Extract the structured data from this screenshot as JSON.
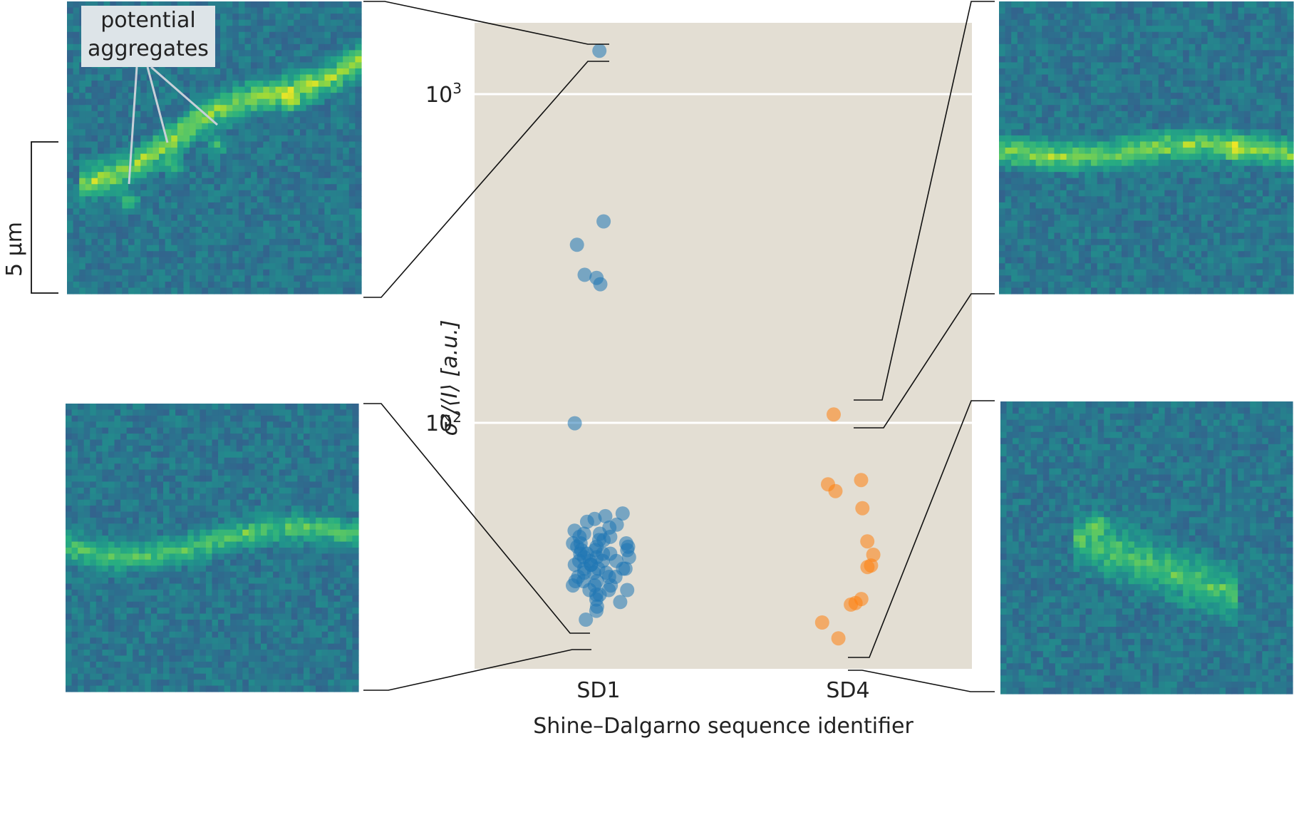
{
  "chart_data": {
    "type": "scatter",
    "y_scale": "log",
    "ylim": [
      20,
      1600
    ],
    "categories": [
      "SD1",
      "SD4"
    ],
    "xlabel": "Shine–Dalgarno sequence identifier",
    "ylabel": "σ²/⟨I⟩  [a.u.]",
    "y_ticks": [
      {
        "value": 100,
        "label_base": "10",
        "label_exp": "2"
      },
      {
        "value": 1000,
        "label_base": "10",
        "label_exp": "3"
      }
    ],
    "grid": true,
    "series": [
      {
        "category": "SD1",
        "color": "#1f77b4",
        "values": [
          1355,
          410,
          348,
          282,
          276,
          264,
          99.7,
          53,
          52,
          51,
          50,
          49,
          48,
          47,
          46,
          46,
          45,
          45,
          44,
          44,
          43,
          43,
          43,
          42,
          42,
          42,
          41,
          41,
          41,
          40,
          40,
          40,
          40,
          39,
          39,
          39,
          38,
          38,
          38,
          38,
          37,
          37,
          37,
          36,
          36,
          36,
          36,
          35,
          35,
          35,
          34,
          34,
          34,
          33,
          33,
          33,
          32,
          32,
          32,
          31,
          31,
          31,
          30,
          30,
          29,
          28.5,
          27.6,
          26.8,
          25.2
        ]
      },
      {
        "category": "SD4",
        "color": "#ff7f0e",
        "values": [
          106,
          67,
          65,
          62,
          55,
          43.6,
          39.7,
          36.8,
          36.4,
          29.1,
          28.3,
          28,
          24.7,
          22.1
        ]
      }
    ]
  },
  "annotations": {
    "potential_aggregates_line1": "potential",
    "potential_aggregates_line2": "aggregates",
    "scale_bar": "5 µm"
  },
  "colors": {
    "plot_background": "#e3ded3",
    "grid": "#ffffff",
    "sd1_marker": "#1f77b4",
    "sd4_marker": "#ff7f0e",
    "annotation_box": "#dde4e8"
  },
  "inset_images": [
    {
      "name": "top-left-cell-image",
      "linked_category": "SD1",
      "linked_value": 1355
    },
    {
      "name": "bottom-left-cell-image",
      "linked_category": "SD1",
      "linked_value": 25.2
    },
    {
      "name": "top-right-cell-image",
      "linked_category": "SD4",
      "linked_value": 106
    },
    {
      "name": "bottom-right-cell-image",
      "linked_category": "SD4",
      "linked_value": 22.1
    }
  ]
}
